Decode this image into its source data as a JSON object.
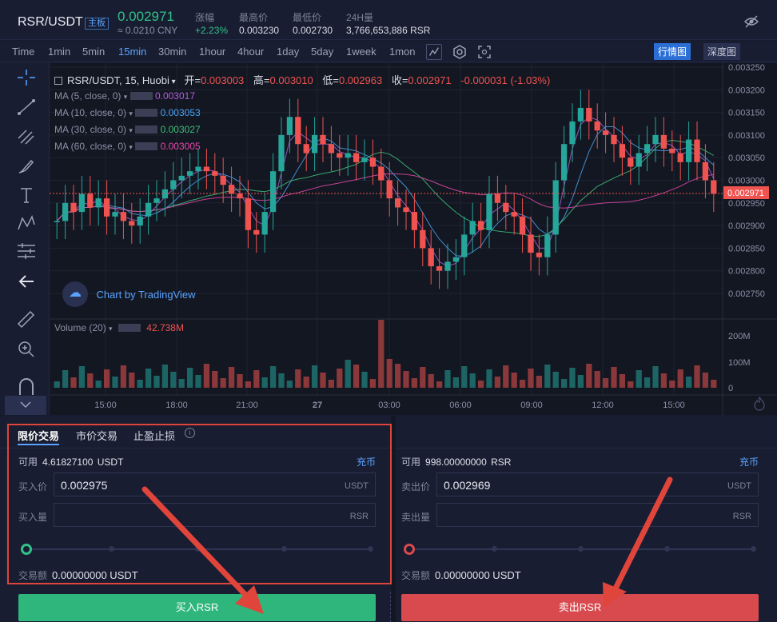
{
  "header": {
    "pair": "RSR/USDT",
    "tag": "主板",
    "last_price": "0.002971",
    "cny": "≈ 0.0210 CNY",
    "stats": [
      {
        "label": "涨幅",
        "value": "+2.23%",
        "color": "#33c18a"
      },
      {
        "label": "最高价",
        "value": "0.003230",
        "color": "#d8dbe6"
      },
      {
        "label": "最低价",
        "value": "0.002730",
        "color": "#d8dbe6"
      },
      {
        "label": "24H量",
        "value": "3,766,653,886 RSR",
        "color": "#d8dbe6"
      }
    ]
  },
  "intervals": [
    "Time",
    "1min",
    "5min",
    "15min",
    "30min",
    "1hour",
    "4hour",
    "1day",
    "5day",
    "1week",
    "1mon"
  ],
  "active_interval": "15min",
  "view_tabs": {
    "market": "行情图",
    "depth": "深度图"
  },
  "chart": {
    "legend_title": "RSR/USDT, 15, Huobi",
    "ohlc": [
      {
        "label": "开=",
        "value": "0.003003"
      },
      {
        "label": "高=",
        "value": "0.003010"
      },
      {
        "label": "低=",
        "value": "0.002963"
      },
      {
        "label": "收=",
        "value": "0.002971"
      }
    ],
    "change": "-0.000031 (-1.03%)",
    "ma": [
      {
        "label": "MA (5, close, 0)",
        "value": "0.003017",
        "color": "#b05cd6"
      },
      {
        "label": "MA (10, close, 0)",
        "value": "0.003053",
        "color": "#4aa3f0"
      },
      {
        "label": "MA (30, close, 0)",
        "value": "0.003027",
        "color": "#3fbf7a"
      },
      {
        "label": "MA (60, close, 0)",
        "value": "0.003005",
        "color": "#e34aa8"
      }
    ],
    "watermark": "Chart by TradingView",
    "volume_label": "Volume (20)",
    "volume_value": "42.738M",
    "price_ticks": [
      "0.003250",
      "0.003200",
      "0.003150",
      "0.003100",
      "0.003050",
      "0.003000",
      "0.002950",
      "0.002900",
      "0.002850",
      "0.002800",
      "0.002750"
    ],
    "volume_ticks": [
      "200M",
      "100M",
      "0"
    ],
    "time_ticks": [
      "15:00",
      "18:00",
      "21:00",
      "27",
      "03:00",
      "06:00",
      "09:00",
      "12:00",
      "15:00"
    ],
    "current_price_tag": "0.002971",
    "colors": {
      "up": "#26a69a",
      "down": "#ef5350"
    }
  },
  "trade": {
    "tabs": [
      "限价交易",
      "市价交易",
      "止盈止损"
    ],
    "buy": {
      "avail_label": "可用",
      "avail_value": "4.61827100",
      "avail_unit": "USDT",
      "charge": "充币",
      "price_label": "买入价",
      "price_value": "0.002975",
      "price_unit": "USDT",
      "qty_label": "买入量",
      "qty_unit": "RSR",
      "amount_label": "交易额",
      "amount_value": "0.00000000 USDT",
      "button": "买入RSR"
    },
    "sell": {
      "avail_label": "可用",
      "avail_value": "998.00000000",
      "avail_unit": "RSR",
      "charge": "充币",
      "price_label": "卖出价",
      "price_value": "0.002969",
      "price_unit": "USDT",
      "qty_label": "卖出量",
      "qty_unit": "RSR",
      "amount_label": "交易额",
      "amount_value": "0.00000000 USDT",
      "button": "卖出RSR"
    }
  }
}
